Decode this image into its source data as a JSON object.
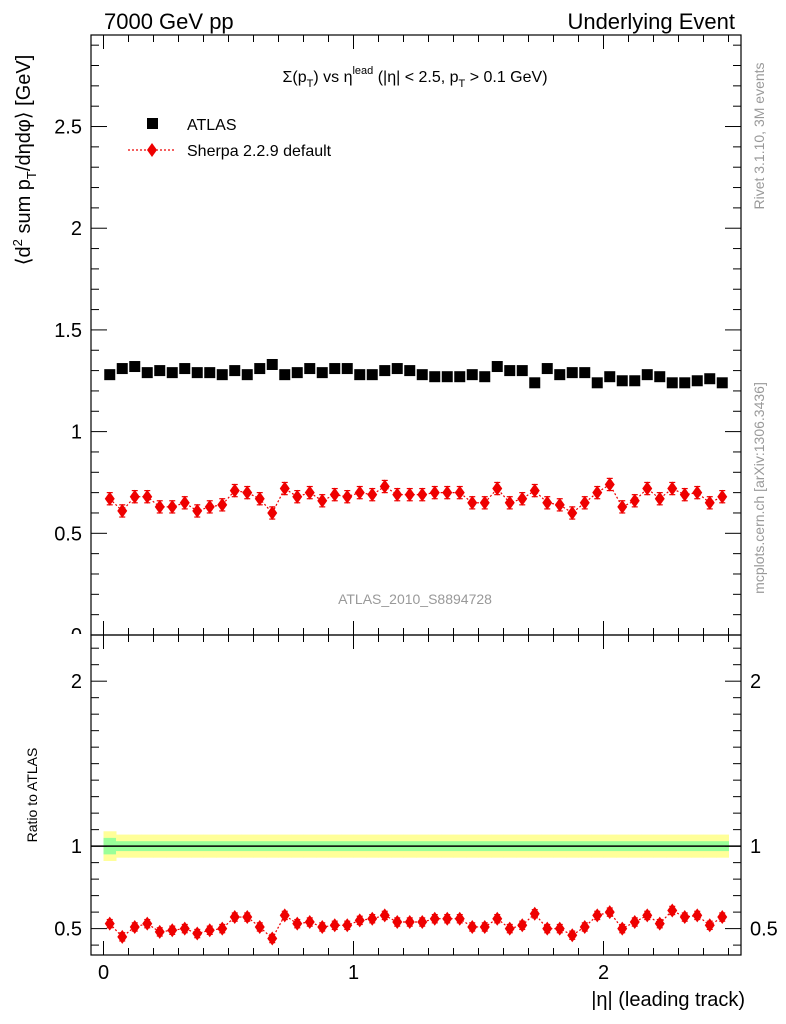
{
  "header": {
    "left": "7000 GeV pp",
    "right": "Underlying Event"
  },
  "side_labels": {
    "rivet": "Rivet 3.1.10,  3M events",
    "mcplots": "mcplots.cern.ch [arXiv:1306.3436]"
  },
  "watermark": "ATLAS_2010_S8894728",
  "colors": {
    "data": "#000000",
    "mc": "#ee0000",
    "band_outer": "#ffff99",
    "band_inner": "#99ff99"
  },
  "chart_data": [
    {
      "type": "scatter",
      "panel": "main",
      "title": "Σ(pT) vs η^lead (|η| < 2.5, pT > 0.1 GeV)",
      "ylabel": "⟨d² sum pT/dηdφ⟩ [GeV]",
      "xlim": [
        -0.05,
        2.55
      ],
      "ylim": [
        0,
        2.95
      ],
      "yticks": [
        "0.5",
        "1",
        "1.5",
        "2",
        "2.5"
      ],
      "legend_position": "top-left",
      "x": [
        0.025,
        0.075,
        0.125,
        0.175,
        0.225,
        0.275,
        0.325,
        0.375,
        0.425,
        0.475,
        0.525,
        0.575,
        0.625,
        0.675,
        0.725,
        0.775,
        0.825,
        0.875,
        0.925,
        0.975,
        1.025,
        1.075,
        1.125,
        1.175,
        1.225,
        1.275,
        1.325,
        1.375,
        1.425,
        1.475,
        1.525,
        1.575,
        1.625,
        1.675,
        1.725,
        1.775,
        1.825,
        1.875,
        1.925,
        1.975,
        2.025,
        2.075,
        2.125,
        2.175,
        2.225,
        2.275,
        2.325,
        2.375,
        2.425,
        2.475
      ],
      "series": [
        {
          "name": "ATLAS",
          "marker": "square",
          "values": [
            1.28,
            1.31,
            1.32,
            1.29,
            1.3,
            1.29,
            1.31,
            1.29,
            1.29,
            1.28,
            1.3,
            1.28,
            1.31,
            1.33,
            1.28,
            1.29,
            1.31,
            1.29,
            1.31,
            1.31,
            1.28,
            1.28,
            1.3,
            1.31,
            1.3,
            1.28,
            1.27,
            1.27,
            1.27,
            1.28,
            1.27,
            1.32,
            1.3,
            1.3,
            1.24,
            1.31,
            1.28,
            1.29,
            1.29,
            1.24,
            1.27,
            1.25,
            1.25,
            1.28,
            1.27,
            1.24,
            1.24,
            1.25,
            1.26,
            1.24
          ]
        },
        {
          "name": "Sherpa 2.2.9 default",
          "marker": "diamond",
          "values": [
            0.67,
            0.61,
            0.68,
            0.68,
            0.63,
            0.63,
            0.65,
            0.61,
            0.63,
            0.64,
            0.71,
            0.7,
            0.67,
            0.6,
            0.72,
            0.68,
            0.7,
            0.66,
            0.69,
            0.68,
            0.7,
            0.69,
            0.73,
            0.69,
            0.69,
            0.69,
            0.7,
            0.7,
            0.7,
            0.65,
            0.65,
            0.72,
            0.65,
            0.67,
            0.71,
            0.65,
            0.64,
            0.6,
            0.65,
            0.7,
            0.74,
            0.63,
            0.66,
            0.72,
            0.67,
            0.72,
            0.69,
            0.7,
            0.65,
            0.68
          ],
          "errors": [
            0.03,
            0.03,
            0.03,
            0.03,
            0.03,
            0.03,
            0.03,
            0.03,
            0.03,
            0.03,
            0.03,
            0.03,
            0.03,
            0.03,
            0.03,
            0.03,
            0.03,
            0.03,
            0.03,
            0.03,
            0.03,
            0.03,
            0.03,
            0.03,
            0.03,
            0.03,
            0.03,
            0.03,
            0.03,
            0.03,
            0.03,
            0.03,
            0.03,
            0.03,
            0.03,
            0.03,
            0.03,
            0.03,
            0.03,
            0.03,
            0.03,
            0.03,
            0.03,
            0.03,
            0.03,
            0.03,
            0.03,
            0.03,
            0.03,
            0.03
          ]
        }
      ]
    },
    {
      "type": "scatter",
      "panel": "ratio",
      "ylabel": "Ratio to ATLAS",
      "xlabel": "|η| (leading track)",
      "xlim": [
        -0.05,
        2.55
      ],
      "ylim": [
        0.34,
        2.28
      ],
      "xticks": [
        "0",
        "1",
        "2"
      ],
      "yticks": [
        "0.5",
        "1",
        "2"
      ],
      "band": {
        "inner_half_width": [
          0.05,
          0.03,
          0.03,
          0.03,
          0.03,
          0.03,
          0.03,
          0.03,
          0.03,
          0.03,
          0.03,
          0.03,
          0.03,
          0.03,
          0.03,
          0.03,
          0.03,
          0.03,
          0.03,
          0.03,
          0.03,
          0.03,
          0.03,
          0.03,
          0.03,
          0.03,
          0.03,
          0.03,
          0.03,
          0.03,
          0.03,
          0.03,
          0.03,
          0.03,
          0.03,
          0.03,
          0.03,
          0.03,
          0.03,
          0.03,
          0.03,
          0.03,
          0.03,
          0.03,
          0.03,
          0.03,
          0.03,
          0.03,
          0.03,
          0.03
        ],
        "outer_half_width": [
          0.09,
          0.07,
          0.07,
          0.07,
          0.07,
          0.07,
          0.07,
          0.07,
          0.07,
          0.07,
          0.07,
          0.07,
          0.07,
          0.07,
          0.07,
          0.07,
          0.07,
          0.07,
          0.07,
          0.07,
          0.07,
          0.07,
          0.07,
          0.07,
          0.07,
          0.07,
          0.07,
          0.07,
          0.07,
          0.07,
          0.07,
          0.07,
          0.07,
          0.07,
          0.07,
          0.07,
          0.07,
          0.07,
          0.07,
          0.07,
          0.07,
          0.07,
          0.07,
          0.07,
          0.07,
          0.07,
          0.07,
          0.07,
          0.07,
          0.07
        ]
      },
      "series": [
        {
          "name": "Sherpa 2.2.9 default",
          "marker": "diamond",
          "values": [
            0.53,
            0.45,
            0.51,
            0.53,
            0.48,
            0.49,
            0.5,
            0.47,
            0.49,
            0.5,
            0.57,
            0.57,
            0.51,
            0.44,
            0.58,
            0.53,
            0.54,
            0.51,
            0.52,
            0.52,
            0.55,
            0.56,
            0.58,
            0.54,
            0.54,
            0.54,
            0.56,
            0.56,
            0.56,
            0.51,
            0.51,
            0.56,
            0.5,
            0.52,
            0.59,
            0.5,
            0.5,
            0.46,
            0.51,
            0.58,
            0.6,
            0.5,
            0.54,
            0.58,
            0.53,
            0.61,
            0.57,
            0.58,
            0.52,
            0.57
          ],
          "errors": [
            0.025,
            0.025,
            0.025,
            0.025,
            0.025,
            0.025,
            0.025,
            0.025,
            0.025,
            0.025,
            0.025,
            0.025,
            0.025,
            0.025,
            0.025,
            0.025,
            0.025,
            0.025,
            0.025,
            0.025,
            0.025,
            0.025,
            0.025,
            0.025,
            0.025,
            0.025,
            0.025,
            0.025,
            0.025,
            0.025,
            0.025,
            0.025,
            0.025,
            0.025,
            0.025,
            0.025,
            0.025,
            0.025,
            0.025,
            0.025,
            0.025,
            0.025,
            0.025,
            0.025,
            0.025,
            0.025,
            0.025,
            0.025,
            0.025,
            0.025
          ]
        }
      ]
    }
  ]
}
